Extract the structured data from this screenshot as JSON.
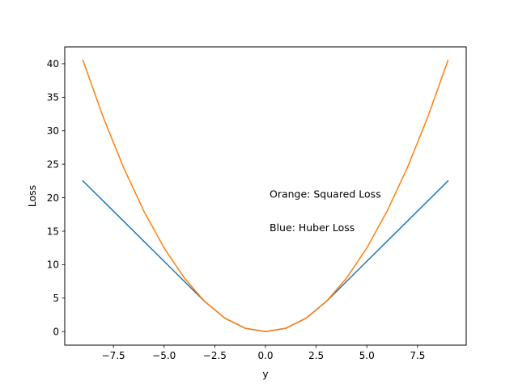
{
  "chart_data": {
    "type": "line",
    "title": "",
    "xlabel": "y",
    "ylabel": "Loss",
    "xlim": [
      -9.9,
      9.9
    ],
    "ylim": [
      -2.025,
      42.525
    ],
    "xticks": [
      -7.5,
      -5.0,
      -2.5,
      0.0,
      2.5,
      5.0,
      7.5
    ],
    "xtick_labels": [
      "−7.5",
      "−5.0",
      "−2.5",
      "0.0",
      "2.5",
      "5.0",
      "7.5"
    ],
    "yticks": [
      0,
      5,
      10,
      15,
      20,
      25,
      30,
      35,
      40
    ],
    "ytick_labels": [
      "0",
      "5",
      "10",
      "15",
      "20",
      "25",
      "30",
      "35",
      "40"
    ],
    "grid": false,
    "x": [
      -9,
      -8,
      -7,
      -6,
      -5,
      -4,
      -3,
      -2,
      -1,
      0,
      1,
      2,
      3,
      4,
      5,
      6,
      7,
      8,
      9
    ],
    "series": [
      {
        "color": "#1f77b4",
        "values": [
          22.5,
          19.5,
          16.5,
          13.5,
          10.5,
          7.5,
          4.5,
          2.0,
          0.5,
          0.0,
          0.5,
          2.0,
          4.5,
          7.5,
          10.5,
          13.5,
          16.5,
          19.5,
          22.5
        ]
      },
      {
        "color": "#ff7f0e",
        "values": [
          40.5,
          32.0,
          24.5,
          18.0,
          12.5,
          8.0,
          4.5,
          2.0,
          0.5,
          0.0,
          0.5,
          2.0,
          4.5,
          8.0,
          12.5,
          18.0,
          24.5,
          32.0,
          40.5
        ]
      }
    ],
    "annotations": [
      {
        "text": "Orange: Squared Loss",
        "x": 0.2,
        "y": 20.0
      },
      {
        "text": "Blue: Huber Loss",
        "x": 0.2,
        "y": 15.0
      }
    ]
  }
}
